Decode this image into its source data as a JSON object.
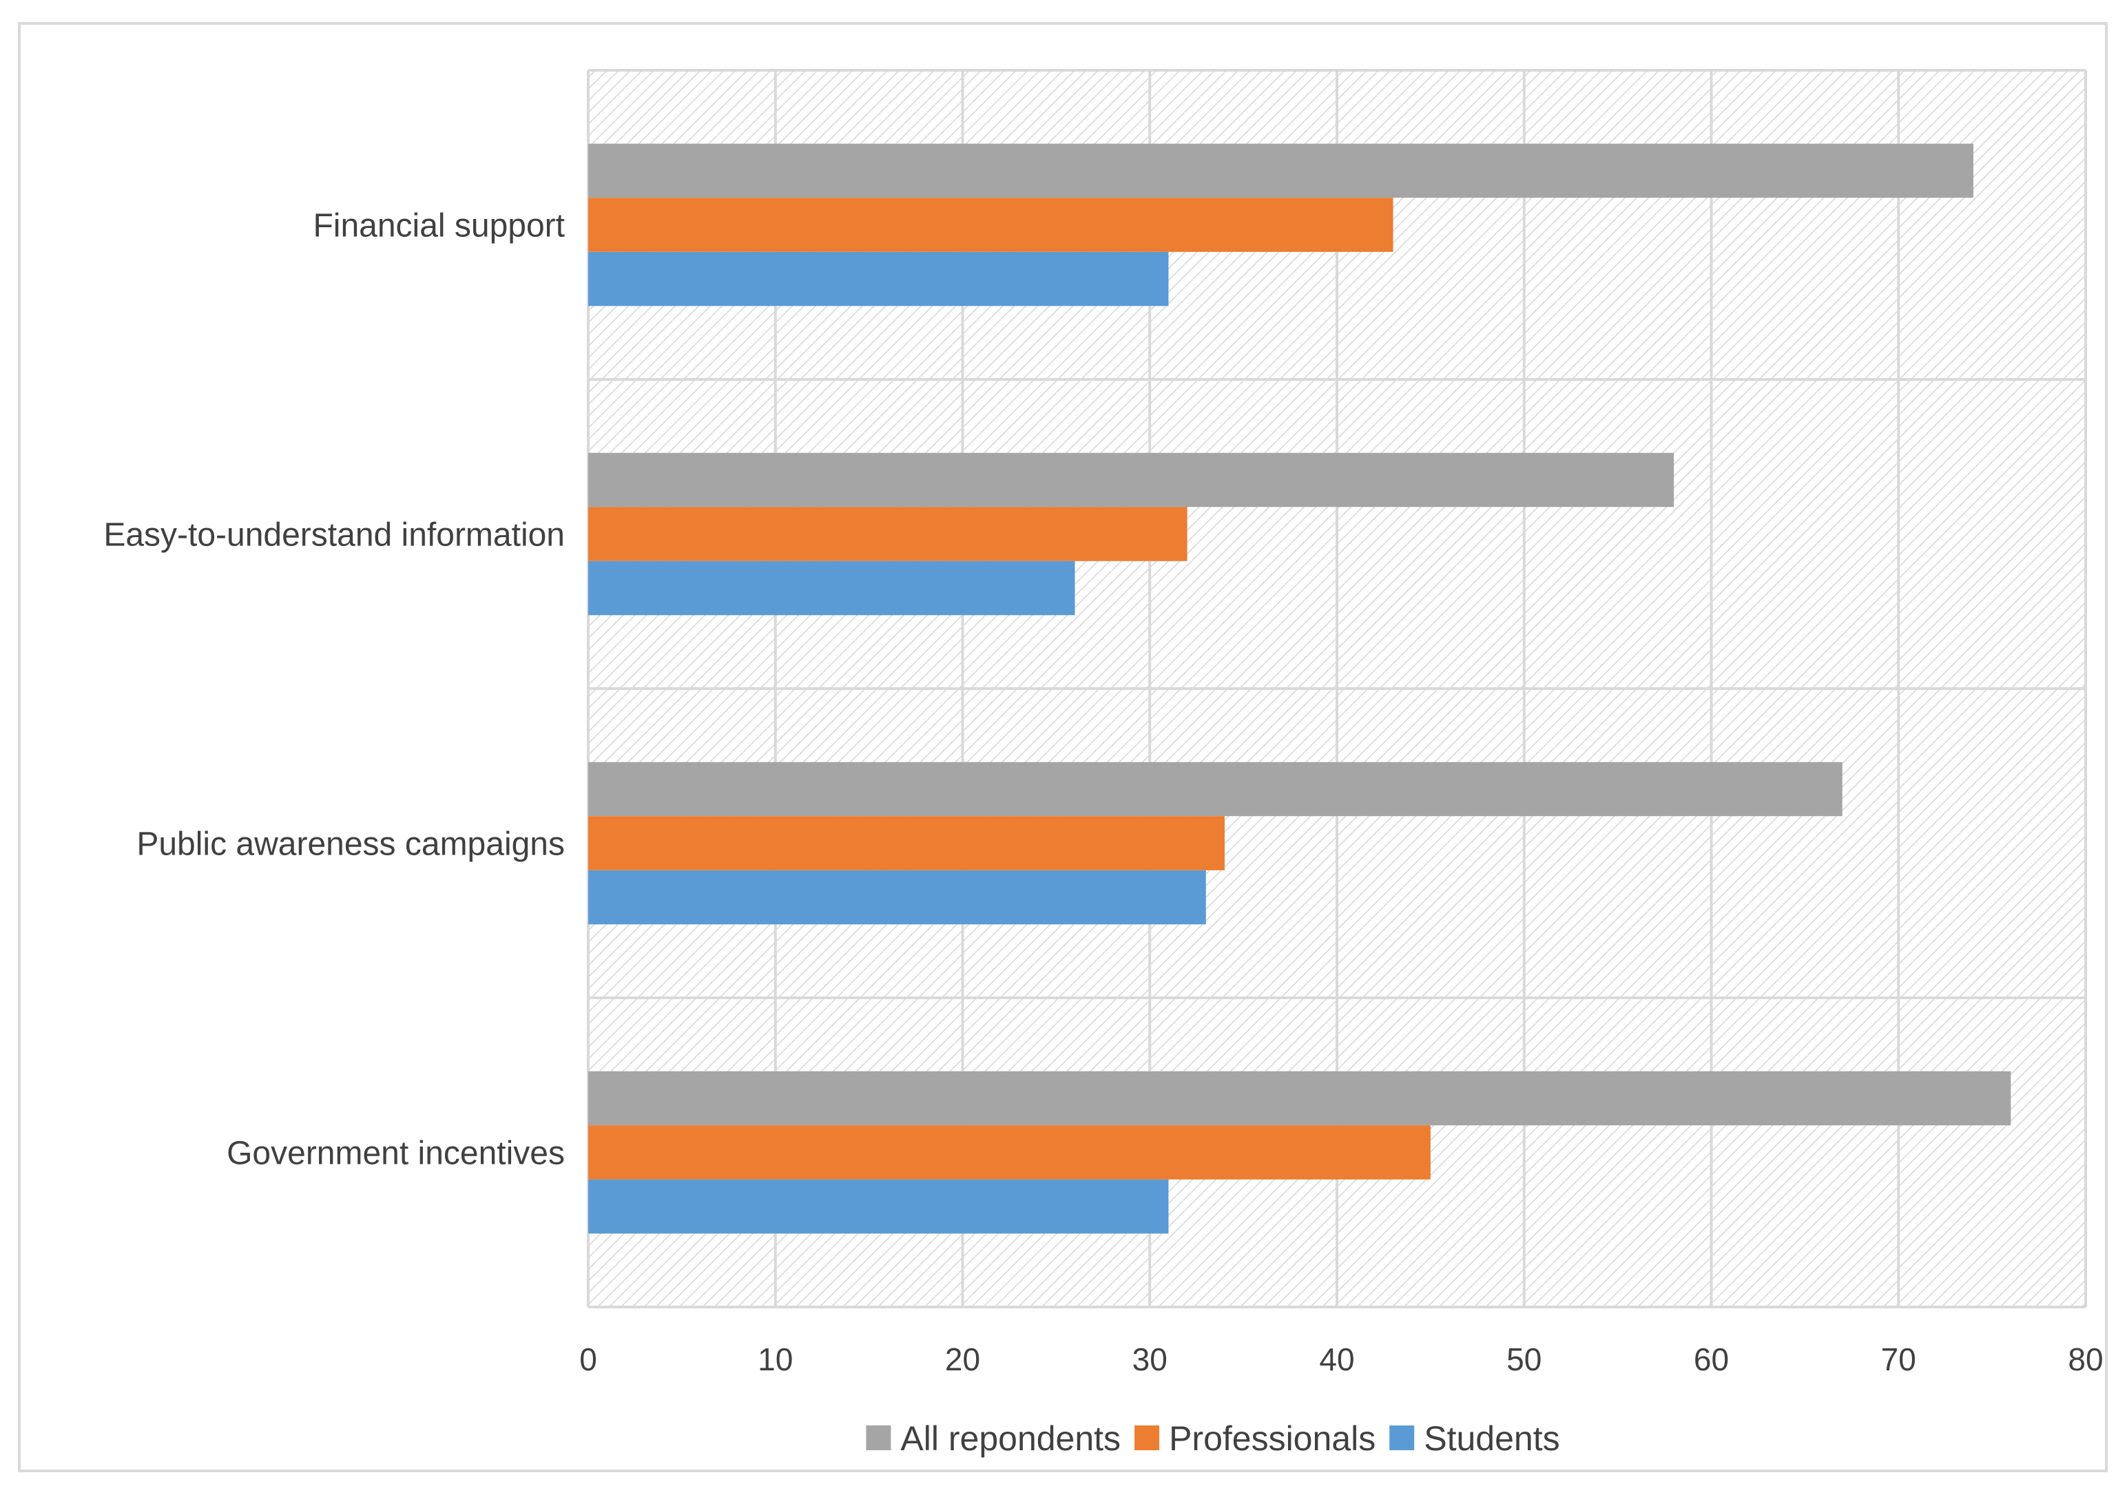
{
  "chart_data": {
    "type": "bar",
    "orientation": "horizontal",
    "title": "",
    "xlabel": "",
    "ylabel": "",
    "xlim": [
      0,
      80
    ],
    "xticks": [
      0,
      10,
      20,
      30,
      40,
      50,
      60,
      70,
      80
    ],
    "grid": true,
    "legend_position": "bottom",
    "categories": [
      "Financial support",
      "Easy-to-understand information",
      "Public awareness campaigns",
      "Government incentives"
    ],
    "series": [
      {
        "name": "All repondents",
        "color": "#a5a5a5",
        "values": [
          74,
          58,
          67,
          76
        ]
      },
      {
        "name": "Professionals",
        "color": "#ed7d31",
        "values": [
          43,
          32,
          34,
          45
        ]
      },
      {
        "name": "Students",
        "color": "#5b9bd5",
        "values": [
          31,
          26,
          33,
          31
        ]
      }
    ]
  }
}
